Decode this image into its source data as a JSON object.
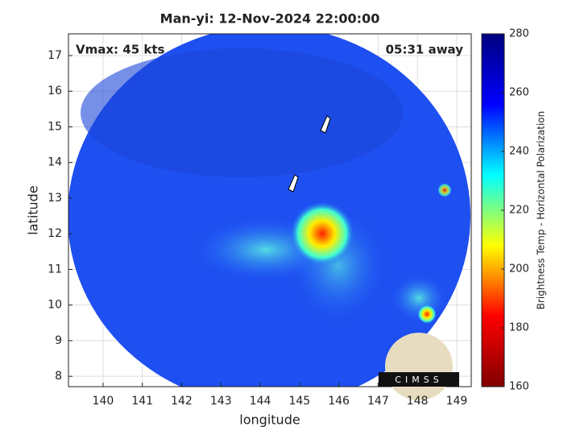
{
  "chart_data": {
    "type": "map",
    "title": "Man-yi: 12-Nov-2024 22:00:00",
    "annotations": [
      "Vmax: 45 kts",
      "05:31 away"
    ],
    "xlabel": "longitude",
    "ylabel": "latitude",
    "xlim": [
      139.12,
      149.37
    ],
    "ylim": [
      7.71,
      17.61
    ],
    "xticks": [
      140,
      141,
      142,
      143,
      144,
      145,
      146,
      147,
      148,
      149
    ],
    "yticks": [
      8,
      9,
      10,
      11,
      12,
      13,
      14,
      15,
      16,
      17
    ],
    "grid": true,
    "colorbar": {
      "label": "Brightness Temp - Horizontal Polarization",
      "lim": [
        160,
        280
      ],
      "ticks": [
        160,
        180,
        200,
        220,
        240,
        260,
        280
      ],
      "colors": [
        "#800000",
        "#ff0000",
        "#ffff00",
        "#00ffff",
        "#0000ff",
        "#000080"
      ]
    },
    "logo": "CIMSS"
  }
}
